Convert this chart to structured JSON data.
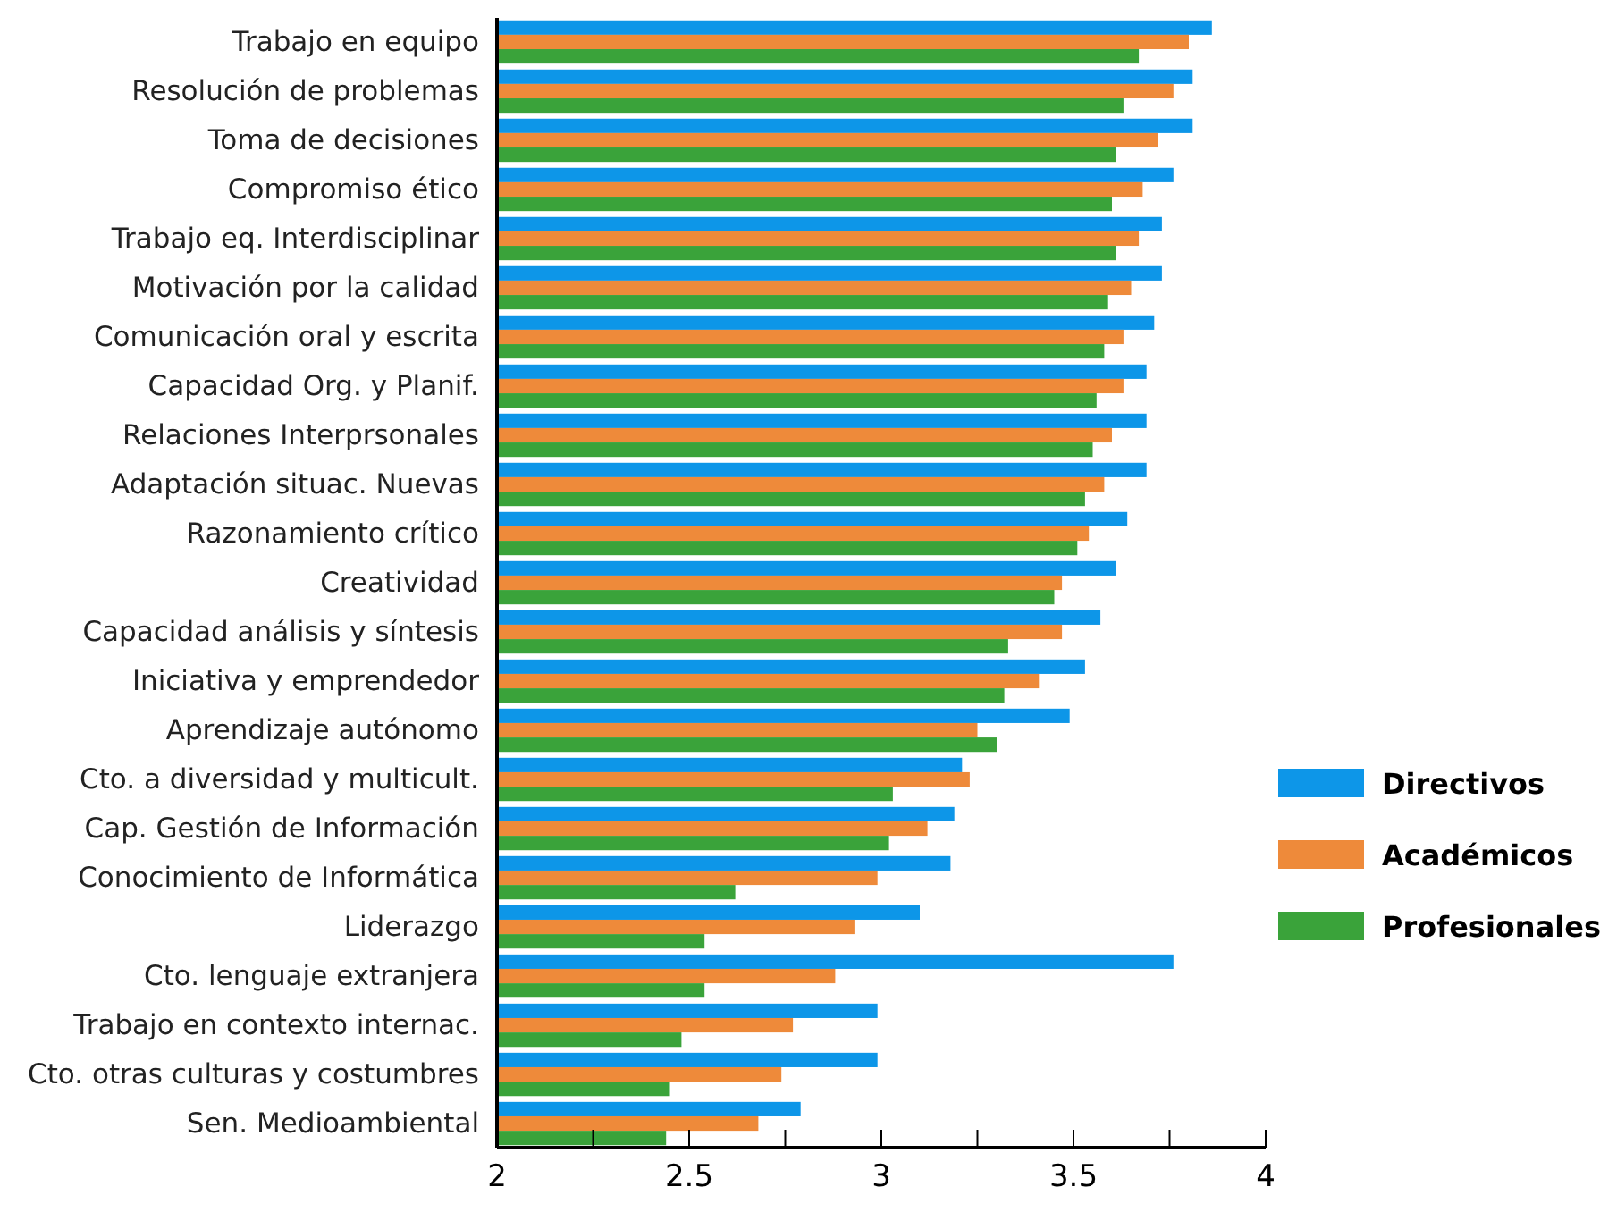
{
  "chart_data": {
    "type": "bar",
    "orientation": "horizontal",
    "categories": [
      "Trabajo en equipo",
      "Resolución de problemas",
      "Toma de decisiones",
      "Compromiso ético",
      "Trabajo eq. Interdisciplinar",
      "Motivación por la calidad",
      "Comunicación oral y escrita",
      "Capacidad Org. y Planif.",
      "Relaciones Interprsonales",
      "Adaptación situac. Nuevas",
      "Razonamiento crítico",
      "Creatividad",
      "Capacidad análisis y síntesis",
      "Iniciativa y emprendedor",
      "Aprendizaje autónomo",
      "Cto. a diversidad y multicult.",
      "Cap. Gestión de Información",
      "Conocimiento de Informática",
      "Liderazgo",
      "Cto. lenguaje extranjera",
      "Trabajo en contexto internac.",
      "Cto. otras culturas y costumbres",
      "Sen. Medioambiental"
    ],
    "series": [
      {
        "name": "Directivos",
        "color": "#0d96e8",
        "values": [
          3.86,
          3.81,
          3.81,
          3.76,
          3.73,
          3.73,
          3.71,
          3.69,
          3.69,
          3.69,
          3.64,
          3.61,
          3.57,
          3.53,
          3.49,
          3.21,
          3.19,
          3.18,
          3.1,
          3.76,
          2.99,
          2.99,
          2.79
        ]
      },
      {
        "name": "Académicos",
        "color": "#ee8a3a",
        "values": [
          3.8,
          3.76,
          3.72,
          3.68,
          3.67,
          3.65,
          3.63,
          3.63,
          3.6,
          3.58,
          3.54,
          3.47,
          3.47,
          3.41,
          3.25,
          3.23,
          3.12,
          2.99,
          2.93,
          2.88,
          2.77,
          2.74,
          2.68
        ]
      },
      {
        "name": "Profesionales",
        "color": "#3aa33a",
        "values": [
          3.67,
          3.63,
          3.61,
          3.6,
          3.61,
          3.59,
          3.58,
          3.56,
          3.55,
          3.53,
          3.51,
          3.45,
          3.33,
          3.32,
          3.3,
          3.03,
          3.02,
          2.62,
          2.54,
          2.54,
          2.48,
          2.45,
          2.44
        ]
      }
    ],
    "xlim": [
      2,
      4
    ],
    "xticks": [
      2,
      {
        "value": 2.25,
        "label": null
      },
      2.5,
      {
        "value": 2.75,
        "label": null
      },
      3,
      {
        "value": 3.25,
        "label": null
      },
      3.5,
      {
        "value": 3.75,
        "label": null
      },
      4
    ],
    "legend": "right",
    "grid": false
  }
}
